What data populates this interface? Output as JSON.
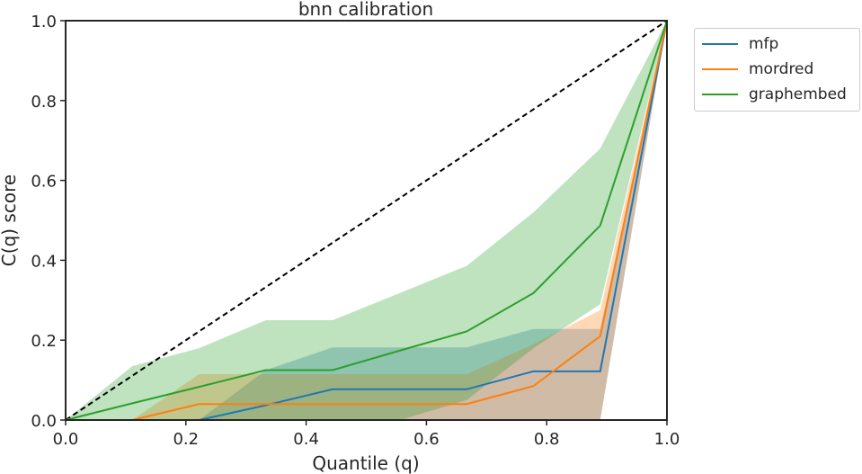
{
  "chart_data": {
    "type": "line",
    "title": "bnn calibration",
    "xlabel": "Quantile (q)",
    "ylabel": "C(q) score",
    "xlim": [
      0,
      1
    ],
    "ylim": [
      0,
      1
    ],
    "xticks": [
      "0.0",
      "0.2",
      "0.4",
      "0.6",
      "0.8",
      "1.0"
    ],
    "yticks": [
      "0.0",
      "0.2",
      "0.4",
      "0.6",
      "0.8",
      "1.0"
    ],
    "grid": false,
    "legend_position": "outside-top-right",
    "reference_line": {
      "style": "dashed",
      "color": "#000000",
      "x": [
        0,
        1
      ],
      "y": [
        0,
        1
      ]
    },
    "x": [
      0.0,
      0.111,
      0.222,
      0.333,
      0.444,
      0.556,
      0.667,
      0.778,
      0.889,
      1.0
    ],
    "series": [
      {
        "name": "mfp",
        "color": "#1f77b4",
        "values": [
          0.0,
          0.0,
          0.0,
          0.037,
          0.077,
          0.077,
          0.077,
          0.122,
          0.122,
          1.0
        ],
        "band_lower": [
          0.0,
          0.0,
          0.0,
          0.0,
          0.0,
          0.0,
          0.0,
          0.0,
          0.0,
          1.0
        ],
        "band_upper": [
          0.0,
          0.0,
          0.0,
          0.125,
          0.182,
          0.182,
          0.182,
          0.228,
          0.228,
          1.0
        ]
      },
      {
        "name": "mordred",
        "color": "#ff7f0e",
        "values": [
          0.0,
          0.0,
          0.04,
          0.04,
          0.04,
          0.04,
          0.04,
          0.085,
          0.21,
          1.0
        ],
        "band_lower": [
          0.0,
          0.0,
          0.0,
          0.0,
          0.0,
          0.0,
          0.0,
          0.0,
          0.0,
          1.0
        ],
        "band_upper": [
          0.0,
          0.0,
          0.115,
          0.115,
          0.115,
          0.115,
          0.115,
          0.19,
          0.275,
          1.0
        ]
      },
      {
        "name": "graphembed",
        "color": "#2ca02c",
        "values": [
          0.0,
          0.042,
          0.083,
          0.125,
          0.125,
          0.174,
          0.222,
          0.318,
          0.487,
          1.0
        ],
        "band_lower": [
          0.0,
          0.0,
          0.0,
          0.0,
          0.0,
          0.0,
          0.05,
          0.18,
          0.29,
          1.0
        ],
        "band_upper": [
          0.0,
          0.135,
          0.18,
          0.25,
          0.25,
          0.318,
          0.386,
          0.52,
          0.68,
          1.0
        ]
      }
    ]
  }
}
